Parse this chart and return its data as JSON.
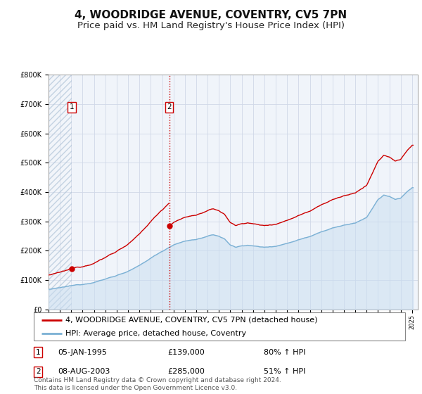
{
  "title": "4, WOODRIDGE AVENUE, COVENTRY, CV5 7PN",
  "subtitle": "Price paid vs. HM Land Registry's House Price Index (HPI)",
  "ylim": [
    0,
    800000
  ],
  "yticks": [
    0,
    100000,
    200000,
    300000,
    400000,
    500000,
    600000,
    700000,
    800000
  ],
  "ytick_labels": [
    "£0",
    "£100K",
    "£200K",
    "£300K",
    "£400K",
    "£500K",
    "£600K",
    "£700K",
    "£800K"
  ],
  "xlim_start": 1993.0,
  "xlim_end": 2025.5,
  "transaction1_year": 1995.04,
  "transaction1_price": 139000,
  "transaction2_year": 2003.62,
  "transaction2_price": 285000,
  "property_line_color": "#cc0000",
  "hpi_line_color": "#7ab0d4",
  "marker_color": "#cc0000",
  "background_color": "#ffffff",
  "plot_bg_color": "#f0f4fa",
  "grid_color": "#d0d8e8",
  "legend_property_label": "4, WOODRIDGE AVENUE, COVENTRY, CV5 7PN (detached house)",
  "legend_hpi_label": "HPI: Average price, detached house, Coventry",
  "footer_text": "Contains HM Land Registry data © Crown copyright and database right 2024.\nThis data is licensed under the Open Government Licence v3.0.",
  "title_fontsize": 11,
  "subtitle_fontsize": 9.5,
  "tick_fontsize": 7,
  "legend_fontsize": 8,
  "footer_fontsize": 6.5
}
